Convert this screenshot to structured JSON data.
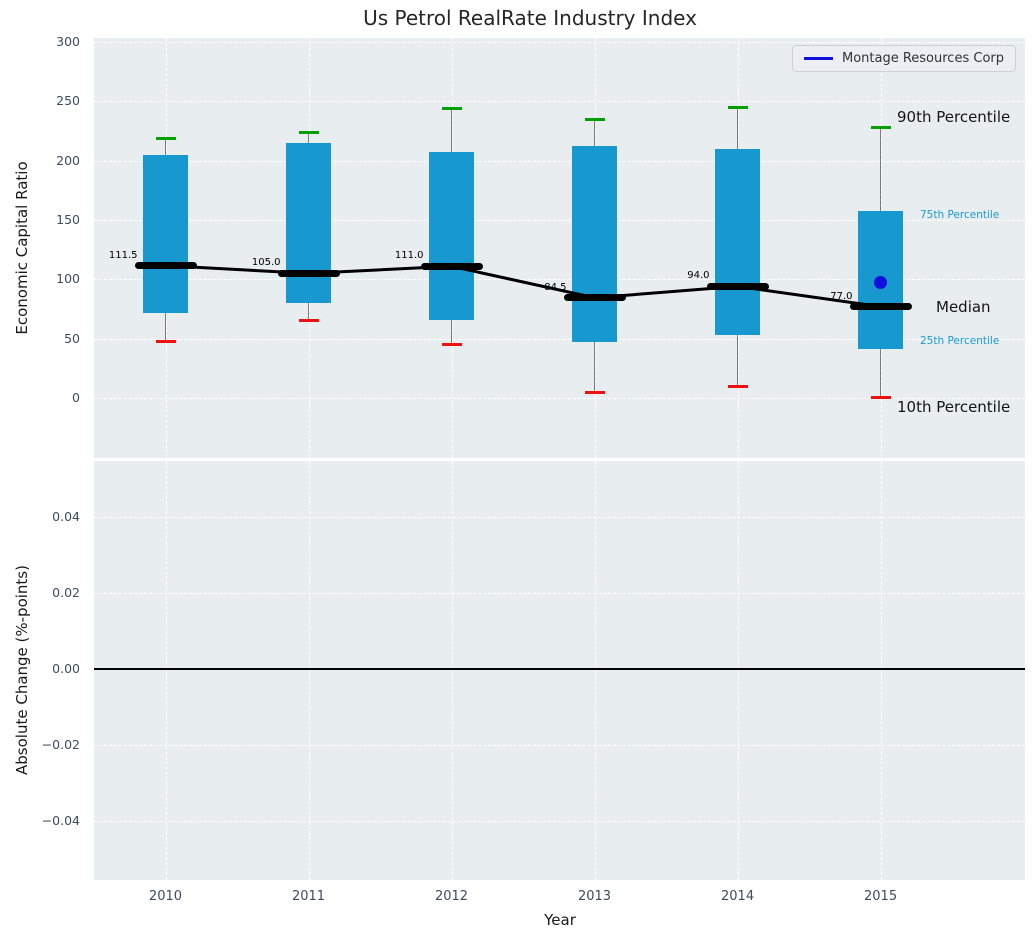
{
  "chart_data": {
    "type": "boxplot",
    "title": "Us Petrol RealRate Industry Index",
    "xlabel": "Year",
    "xlim": [
      2009.5,
      2016.01
    ],
    "categories": [
      2010,
      2011,
      2012,
      2013,
      2014,
      2015
    ],
    "x_tick_labels": [
      "2010",
      "2011",
      "2012",
      "2013",
      "2014",
      "2015"
    ],
    "grid": "white-dashed",
    "legend_position": "upper-right",
    "top_panel": {
      "ylabel": "Economic Capital Ratio",
      "ylim": [
        -50.6,
        303.4
      ],
      "yticks": [
        {
          "value": 300,
          "label": "300"
        },
        {
          "value": 250,
          "label": "250"
        },
        {
          "value": 200,
          "label": "200"
        },
        {
          "value": 150,
          "label": "150"
        },
        {
          "value": 100,
          "label": "100"
        },
        {
          "value": 50,
          "label": "50"
        },
        {
          "value": 0,
          "label": "0"
        }
      ],
      "boxes": [
        {
          "year": 2010,
          "p10": 48,
          "p25": 72,
          "median": 111.5,
          "median_label": "111.5",
          "p75": 205,
          "p90": 219
        },
        {
          "year": 2011,
          "p10": 65,
          "p25": 80,
          "median": 105.0,
          "median_label": "105.0",
          "p75": 215,
          "p90": 224
        },
        {
          "year": 2012,
          "p10": 45,
          "p25": 66,
          "median": 111.0,
          "median_label": "111.0",
          "p75": 207,
          "p90": 244
        },
        {
          "year": 2013,
          "p10": 5,
          "p25": 47,
          "median": 84.5,
          "median_label": "84.5",
          "p75": 212,
          "p90": 235
        },
        {
          "year": 2014,
          "p10": 10,
          "p25": 53,
          "median": 94.0,
          "median_label": "94.0",
          "p75": 210,
          "p90": 245
        },
        {
          "year": 2015,
          "p10": 0,
          "p25": 41,
          "median": 77.0,
          "median_label": "77.0",
          "p75": 158,
          "p90": 228
        }
      ],
      "company_series": {
        "name": "Montage Resources Corp",
        "year": 2015,
        "value": 97
      },
      "percentile_labels": {
        "p90": "90th Percentile",
        "p75": "75th Percentile",
        "median": "Median",
        "p25": "25th Percentile",
        "p10": "10th Percentile"
      }
    },
    "bottom_panel": {
      "ylabel": "Absolute Change (%-points)",
      "ylim": [
        -0.0555,
        0.0547
      ],
      "yticks": [
        {
          "value": 0.04,
          "label": "0.04"
        },
        {
          "value": 0.02,
          "label": "0.02"
        },
        {
          "value": 0.0,
          "label": "0.00"
        },
        {
          "value": -0.02,
          "label": "−0.02"
        },
        {
          "value": -0.04,
          "label": "−0.04"
        }
      ],
      "zero_line": 0.0
    },
    "colors": {
      "box": "#1798cf",
      "cap_high": "#00a000",
      "cap_low": "#ee1111",
      "median": "#000000",
      "whisker": "#7a7a7a",
      "company": "#1010dd",
      "percentile_label": "#1a9bd0"
    }
  }
}
